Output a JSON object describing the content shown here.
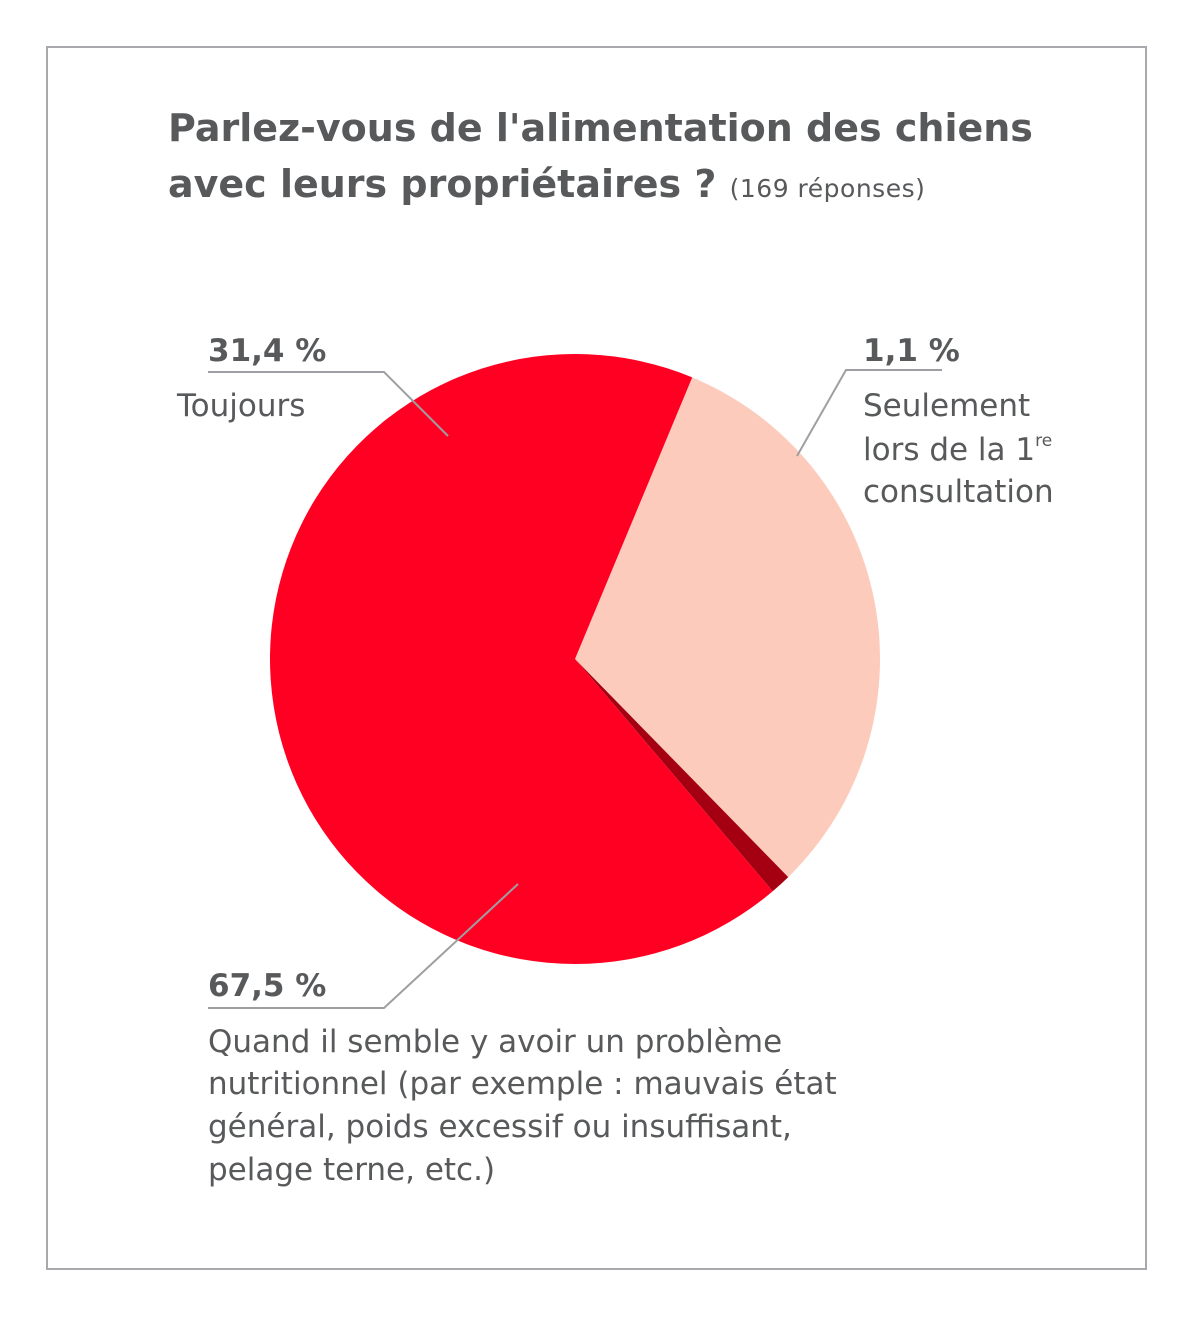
{
  "chart_data": {
    "type": "pie",
    "title": "Parlez-vous de l'alimentation des chiens avec leurs propriétaires ?",
    "subtitle": "(169 réponses)",
    "slices": [
      {
        "label": "Toujours",
        "pct_label": "31,4 %",
        "value": 31.4,
        "color": "#fccbbc"
      },
      {
        "label": "Seulement lors de la 1re consultation",
        "label_lines": [
          "Seulement",
          "lors de la 1",
          "consultation"
        ],
        "label_sup": "re",
        "pct_label": "1,1 %",
        "value": 1.1,
        "color": "#a50011"
      },
      {
        "label": "Quand il semble y avoir un problème nutritionnel (par exemple : mauvais état général, poids excessif ou insuffisant, pelage terne, etc.)",
        "label_lines": [
          "Quand il semble y avoir un problème",
          "nutritionnel (par exemple : mauvais état",
          "général, poids excessif ou insuffisant,",
          "pelage terne, etc.)"
        ],
        "pct_label": "67,5 %",
        "value": 67.5,
        "color": "#ff0022"
      }
    ]
  }
}
